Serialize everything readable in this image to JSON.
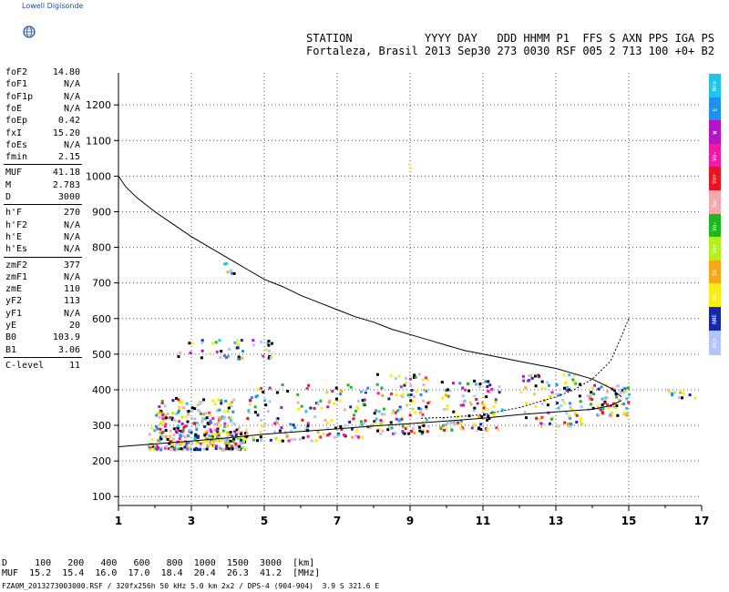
{
  "logo": {
    "text": "Lowell Digisonde"
  },
  "header": {
    "line1": "STATION           YYYY DAY   DDD HHMM P1  FFS S AXN PPS IGA PS",
    "line2": "Fortaleza, Brasil 2013 Sep30 273 0030 RSF 005 2 713 100 +0+ B2"
  },
  "params": {
    "group1": [
      {
        "name": "foF2",
        "value": "14.80"
      },
      {
        "name": "foF1",
        "value": "N/A"
      },
      {
        "name": "foF1p",
        "value": "N/A"
      },
      {
        "name": "foE",
        "value": "N/A"
      },
      {
        "name": "foEp",
        "value": "0.42"
      },
      {
        "name": "fxI",
        "value": "15.20"
      },
      {
        "name": "foEs",
        "value": "N/A"
      },
      {
        "name": "fmin",
        "value": "2.15"
      }
    ],
    "group2": [
      {
        "name": "MUF",
        "value": "41.18"
      },
      {
        "name": "M",
        "value": "2.783"
      },
      {
        "name": "D",
        "value": "3000"
      }
    ],
    "group3": [
      {
        "name": "h'F",
        "value": "270"
      },
      {
        "name": "h'F2",
        "value": "N/A"
      },
      {
        "name": "h'E",
        "value": "N/A"
      },
      {
        "name": "h'Es",
        "value": "N/A"
      }
    ],
    "group4": [
      {
        "name": "zmF2",
        "value": "377"
      },
      {
        "name": "zmF1",
        "value": "N/A"
      },
      {
        "name": "zmE",
        "value": "110"
      },
      {
        "name": "yF2",
        "value": "113"
      },
      {
        "name": "yF1",
        "value": "N/A"
      },
      {
        "name": "yE",
        "value": "20"
      },
      {
        "name": "B0",
        "value": "103.9"
      },
      {
        "name": "B1",
        "value": "3.06"
      }
    ],
    "group5": [
      {
        "name": "C-level",
        "value": "11"
      }
    ]
  },
  "legend": [
    {
      "label": "Nro",
      "color": "#22c4ee"
    },
    {
      "label": "E",
      "color": "#1f8ff0"
    },
    {
      "label": "W",
      "color": "#b414c8"
    },
    {
      "label": "Vo-",
      "color": "#f019a8"
    },
    {
      "label": "Vo+",
      "color": "#e8141e"
    },
    {
      "label": "Sw-",
      "color": "#f4a8b0"
    },
    {
      "label": "Vo-",
      "color": "#1eb81e"
    },
    {
      "label": "Vo+",
      "color": "#b4f01e"
    },
    {
      "label": "Se",
      "color": "#f8a814"
    },
    {
      "label": "Hi-",
      "color": "#f8ee14"
    },
    {
      "label": "NNE",
      "color": "#1428a8"
    },
    {
      "label": "Hi+",
      "color": "#b4c4f8"
    }
  ],
  "bottom": {
    "d_line": "D     100   200   400   600   800  1000  1500  3000  [km]",
    "muf_line": "MUF  15.2  15.4  16.0  17.0  18.4  20.4  26.3  41.2  [MHz]",
    "footer": "FZA0M_2013273003000.RSF / 320fx256h 50 kHz 5.0 km 2x2 / DPS-4 (904-904)  3.9 S 321.6 E"
  },
  "chart_data": {
    "type": "scatter",
    "xlim": [
      1,
      17
    ],
    "ylim": [
      75,
      1290
    ],
    "x_ticks": [
      "1",
      "3",
      "5",
      "7",
      "9",
      "11",
      "13",
      "15",
      "17"
    ],
    "y_ticks": [
      "100",
      "200",
      "300",
      "400",
      "500",
      "600",
      "700",
      "800",
      "900",
      "1000",
      "1100",
      "1200"
    ],
    "grid": true,
    "profile_curve": {
      "x": [
        1.0,
        1.2,
        1.5,
        2.0,
        2.5,
        3.0,
        3.5,
        4.0,
        4.5,
        5.0,
        5.5,
        6.0,
        6.5,
        7.0,
        7.5,
        8.0,
        8.5,
        9.0,
        9.5,
        10.0,
        10.5,
        11.0,
        11.5,
        12.0,
        12.5,
        13.0,
        13.5,
        14.0,
        14.5,
        14.8
      ],
      "y": [
        1000,
        970,
        940,
        900,
        865,
        830,
        800,
        770,
        740,
        710,
        690,
        665,
        645,
        625,
        605,
        590,
        570,
        555,
        540,
        525,
        510,
        500,
        490,
        480,
        470,
        460,
        445,
        430,
        405,
        380
      ]
    },
    "trace_curve": {
      "x": [
        1.0,
        2.0,
        3.0,
        4.0,
        5.0,
        6.0,
        7.0,
        8.0,
        9.0,
        10.0,
        11.0,
        12.0,
        13.0,
        14.0,
        14.5,
        14.8
      ],
      "y": [
        240,
        248,
        256,
        265,
        275,
        283,
        290,
        298,
        305,
        312,
        320,
        330,
        338,
        345,
        355,
        370
      ]
    },
    "upper_trace": {
      "x": [
        9.3,
        10.0,
        11.0,
        12.0,
        13.0,
        13.5,
        14.0,
        14.5,
        14.8,
        15.0
      ],
      "y": [
        320,
        322,
        330,
        350,
        380,
        400,
        430,
        480,
        550,
        600
      ]
    },
    "echo_clusters": [
      {
        "x": [
          1.8,
          4.5
        ],
        "y": [
          235,
          300
        ],
        "n": 260
      },
      {
        "x": [
          2.0,
          4.2
        ],
        "y": [
          300,
          380
        ],
        "n": 120
      },
      {
        "x": [
          4.5,
          6.5
        ],
        "y": [
          260,
          420
        ],
        "n": 80
      },
      {
        "x": [
          6.5,
          8.0
        ],
        "y": [
          270,
          420
        ],
        "n": 70
      },
      {
        "x": [
          8.0,
          9.5
        ],
        "y": [
          280,
          450
        ],
        "n": 110
      },
      {
        "x": [
          9.8,
          11.5
        ],
        "y": [
          290,
          430
        ],
        "n": 100
      },
      {
        "x": [
          12.0,
          13.7
        ],
        "y": [
          300,
          450
        ],
        "n": 90
      },
      {
        "x": [
          13.8,
          15.0
        ],
        "y": [
          330,
          420
        ],
        "n": 70
      },
      {
        "x": [
          2.6,
          5.2
        ],
        "y": [
          490,
          545
        ],
        "n": 45
      },
      {
        "x": [
          3.7,
          4.3
        ],
        "y": [
          730,
          760
        ],
        "n": 6
      },
      {
        "x": [
          16.0,
          16.9
        ],
        "y": [
          380,
          415
        ],
        "n": 12
      }
    ]
  }
}
